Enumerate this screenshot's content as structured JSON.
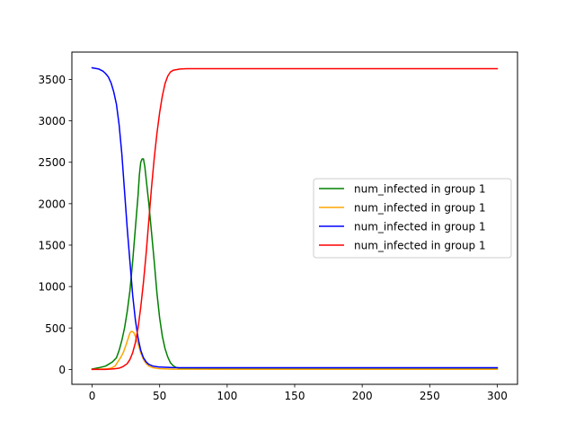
{
  "chart_data": {
    "type": "line",
    "title": "",
    "xlabel": "",
    "ylabel": "",
    "xlim": [
      -15,
      315
    ],
    "ylim": [
      -180,
      3830
    ],
    "xticks": [
      0,
      50,
      100,
      150,
      200,
      250,
      300
    ],
    "yticks": [
      0,
      500,
      1000,
      1500,
      2000,
      2500,
      3000,
      3500
    ],
    "grid": false,
    "legend_position": "center-right",
    "series": [
      {
        "name": "num_infected in group 1",
        "color": "#008000",
        "points": [
          [
            0,
            5
          ],
          [
            5,
            20
          ],
          [
            10,
            40
          ],
          [
            15,
            90
          ],
          [
            18,
            140
          ],
          [
            20,
            230
          ],
          [
            22,
            350
          ],
          [
            24,
            500
          ],
          [
            26,
            700
          ],
          [
            28,
            950
          ],
          [
            30,
            1300
          ],
          [
            32,
            1700
          ],
          [
            34,
            2100
          ],
          [
            35,
            2350
          ],
          [
            36,
            2500
          ],
          [
            37,
            2540
          ],
          [
            38,
            2540
          ],
          [
            39,
            2450
          ],
          [
            40,
            2300
          ],
          [
            42,
            2000
          ],
          [
            44,
            1650
          ],
          [
            46,
            1300
          ],
          [
            48,
            920
          ],
          [
            50,
            620
          ],
          [
            52,
            400
          ],
          [
            54,
            250
          ],
          [
            56,
            150
          ],
          [
            58,
            80
          ],
          [
            60,
            45
          ],
          [
            62,
            25
          ],
          [
            65,
            15
          ],
          [
            70,
            12
          ],
          [
            100,
            10
          ],
          [
            150,
            10
          ],
          [
            200,
            10
          ],
          [
            250,
            10
          ],
          [
            300,
            10
          ]
        ]
      },
      {
        "name": "num_infected in group 1",
        "color": "#FFA500",
        "points": [
          [
            0,
            0
          ],
          [
            10,
            5
          ],
          [
            14,
            15
          ],
          [
            17,
            40
          ],
          [
            19,
            90
          ],
          [
            21,
            140
          ],
          [
            23,
            200
          ],
          [
            25,
            290
          ],
          [
            27,
            390
          ],
          [
            28,
            440
          ],
          [
            29,
            460
          ],
          [
            30,
            455
          ],
          [
            31,
            440
          ],
          [
            32,
            400
          ],
          [
            34,
            310
          ],
          [
            36,
            200
          ],
          [
            38,
            120
          ],
          [
            40,
            70
          ],
          [
            42,
            40
          ],
          [
            45,
            20
          ],
          [
            50,
            8
          ],
          [
            60,
            3
          ],
          [
            100,
            2
          ],
          [
            200,
            2
          ],
          [
            300,
            2
          ]
        ]
      },
      {
        "name": "num_infected in group 1",
        "color": "#0000FF",
        "points": [
          [
            0,
            3640
          ],
          [
            5,
            3625
          ],
          [
            8,
            3600
          ],
          [
            10,
            3570
          ],
          [
            12,
            3530
          ],
          [
            14,
            3460
          ],
          [
            16,
            3350
          ],
          [
            18,
            3200
          ],
          [
            20,
            2950
          ],
          [
            22,
            2600
          ],
          [
            24,
            2150
          ],
          [
            26,
            1700
          ],
          [
            28,
            1300
          ],
          [
            30,
            900
          ],
          [
            32,
            600
          ],
          [
            34,
            380
          ],
          [
            36,
            230
          ],
          [
            38,
            140
          ],
          [
            40,
            90
          ],
          [
            42,
            60
          ],
          [
            45,
            40
          ],
          [
            50,
            28
          ],
          [
            60,
            22
          ],
          [
            80,
            20
          ],
          [
            100,
            20
          ],
          [
            150,
            20
          ],
          [
            200,
            20
          ],
          [
            250,
            20
          ],
          [
            300,
            20
          ]
        ]
      },
      {
        "name": "num_infected in group 1",
        "color": "#FF0000",
        "points": [
          [
            0,
            0
          ],
          [
            10,
            0
          ],
          [
            15,
            5
          ],
          [
            20,
            15
          ],
          [
            23,
            35
          ],
          [
            26,
            70
          ],
          [
            28,
            120
          ],
          [
            30,
            200
          ],
          [
            32,
            320
          ],
          [
            34,
            500
          ],
          [
            36,
            750
          ],
          [
            38,
            1050
          ],
          [
            40,
            1400
          ],
          [
            42,
            1800
          ],
          [
            44,
            2200
          ],
          [
            46,
            2550
          ],
          [
            48,
            2850
          ],
          [
            50,
            3100
          ],
          [
            52,
            3300
          ],
          [
            54,
            3450
          ],
          [
            56,
            3540
          ],
          [
            58,
            3590
          ],
          [
            60,
            3610
          ],
          [
            65,
            3625
          ],
          [
            70,
            3630
          ],
          [
            100,
            3630
          ],
          [
            150,
            3630
          ],
          [
            200,
            3630
          ],
          [
            250,
            3630
          ],
          [
            300,
            3630
          ]
        ]
      }
    ]
  }
}
